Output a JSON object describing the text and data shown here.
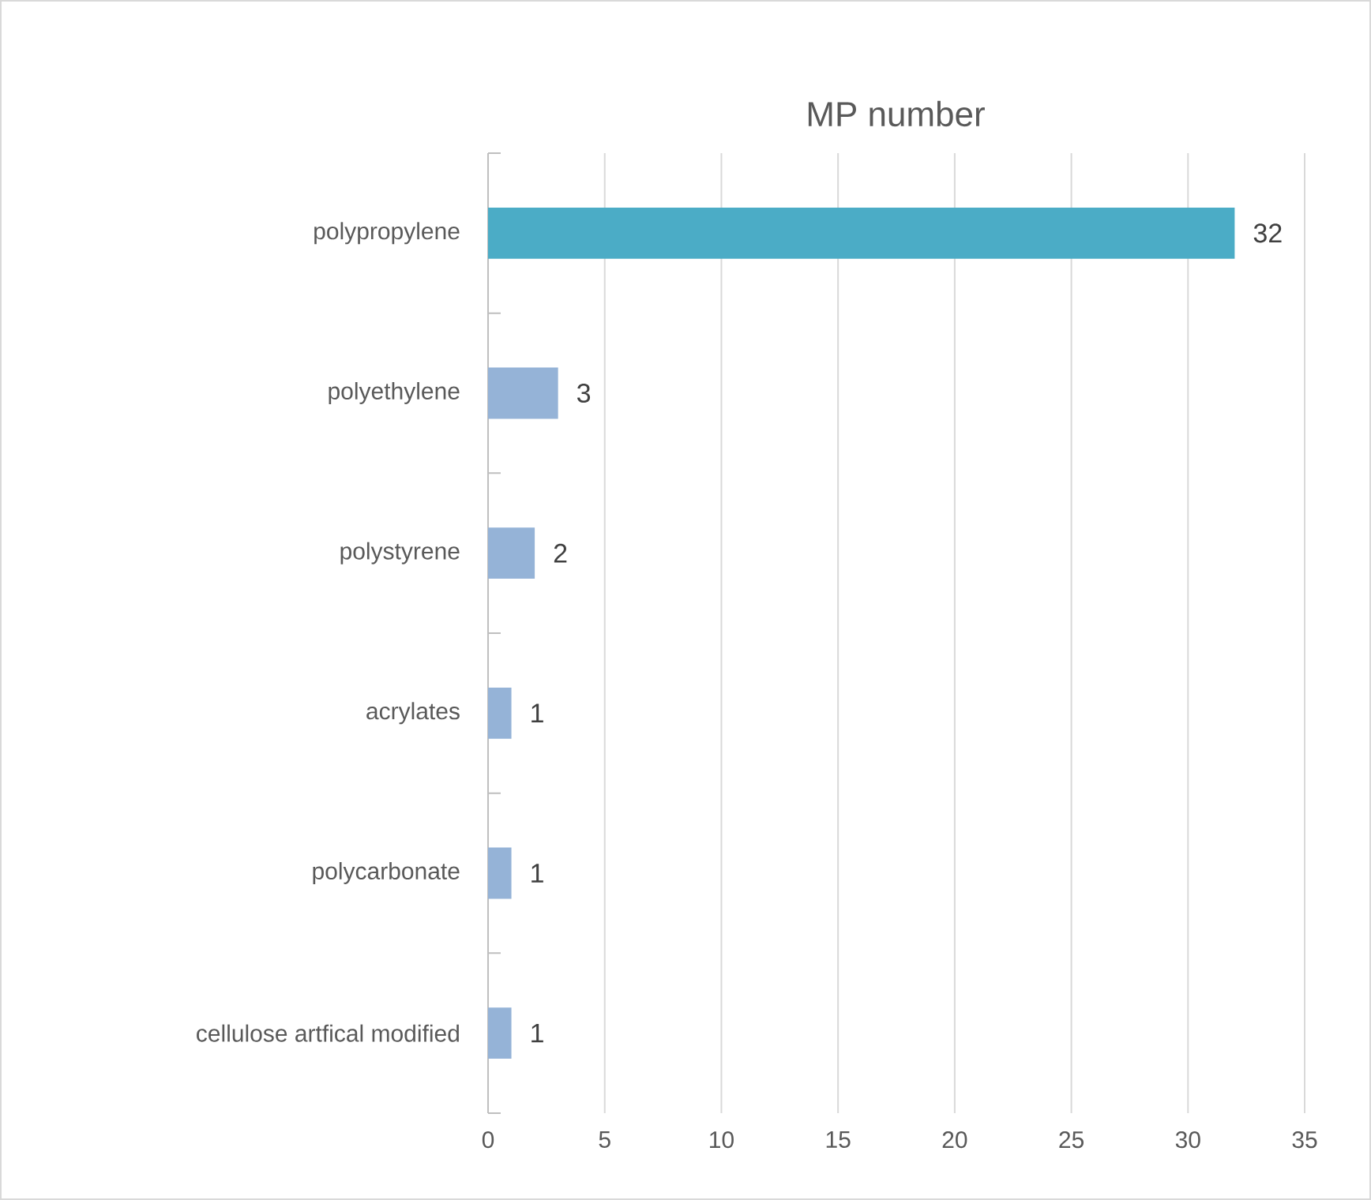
{
  "chart_data": {
    "type": "bar",
    "orientation": "horizontal",
    "title": "MP number",
    "categories": [
      "polypropylene",
      "polyethylene",
      "polystyrene",
      "acrylates",
      "polycarbonate",
      "cellulose artfical modified"
    ],
    "values": [
      32,
      3,
      2,
      1,
      1,
      1
    ],
    "colors": [
      "#4bacc6",
      "#95b3d7",
      "#95b3d7",
      "#95b3d7",
      "#95b3d7",
      "#95b3d7"
    ],
    "xlim": [
      0,
      35
    ],
    "xticks": [
      0,
      5,
      10,
      15,
      20,
      25,
      30,
      35
    ],
    "grid": "x",
    "data_labels": true
  }
}
